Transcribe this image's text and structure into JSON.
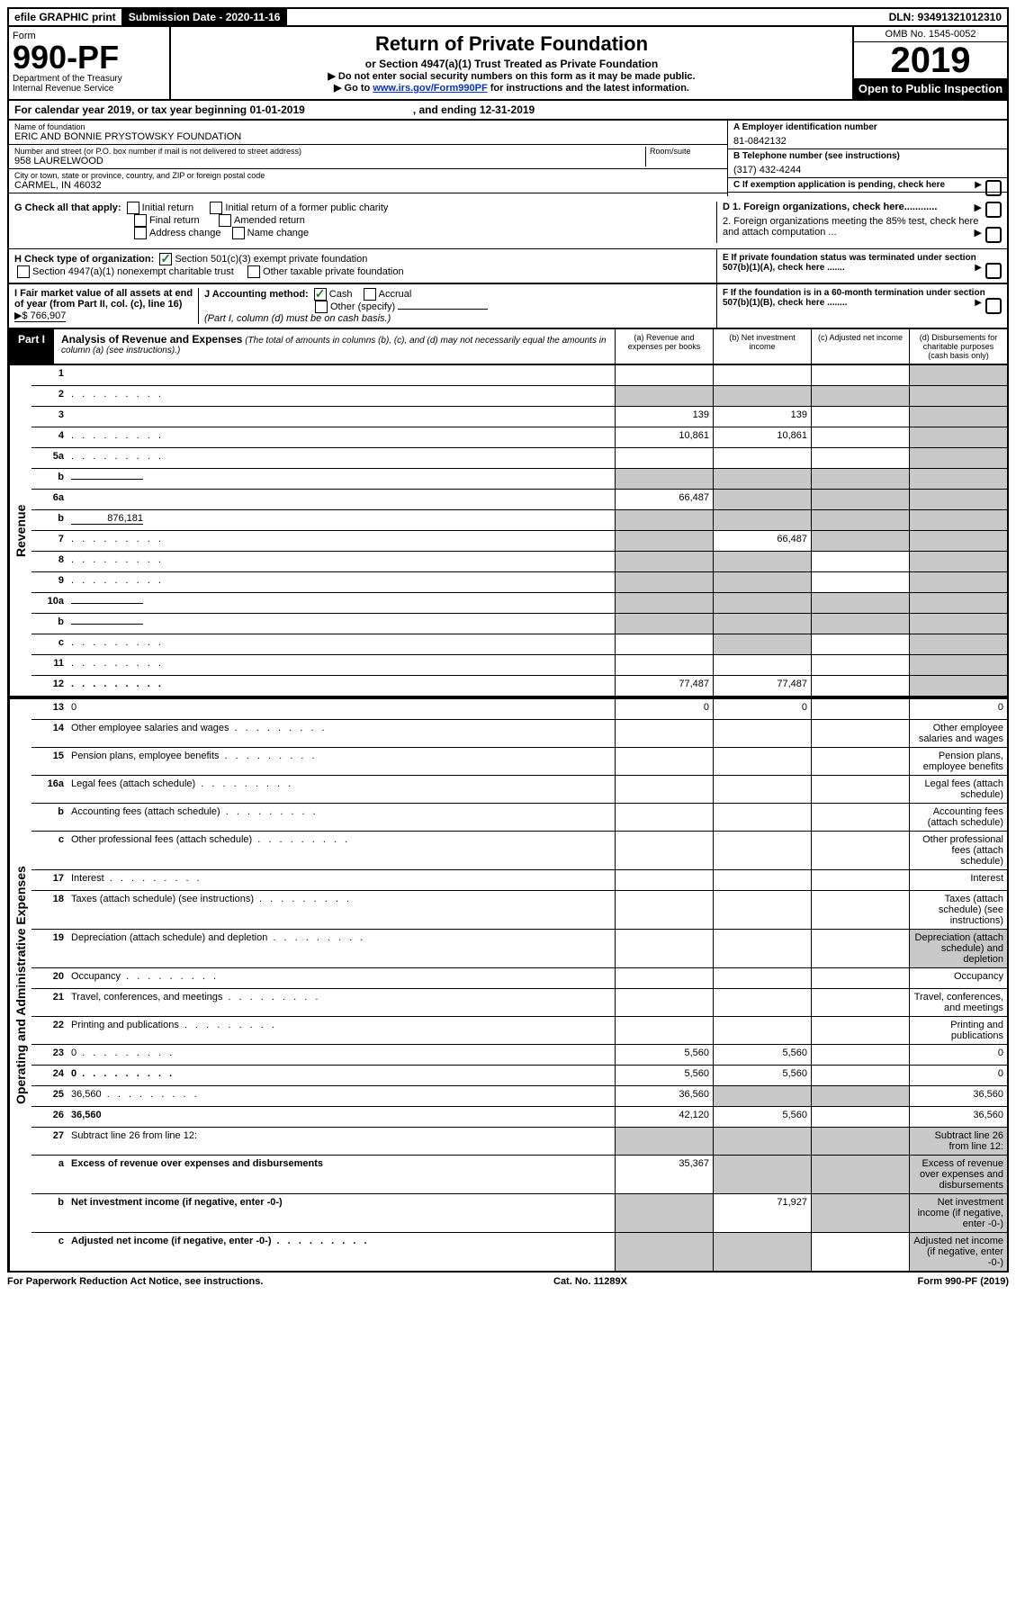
{
  "topbar": {
    "efile": "efile GRAPHIC print",
    "submission_label": "Submission Date - 2020-11-16",
    "dln": "DLN: 93491321012310"
  },
  "header": {
    "form_word": "Form",
    "form_number": "990-PF",
    "dept": "Department of the Treasury",
    "irs": "Internal Revenue Service",
    "title": "Return of Private Foundation",
    "subtitle": "or Section 4947(a)(1) Trust Treated as Private Foundation",
    "note1": "▶ Do not enter social security numbers on this form as it may be made public.",
    "note2_pre": "▶ Go to ",
    "note2_link": "www.irs.gov/Form990PF",
    "note2_post": " for instructions and the latest information.",
    "omb": "OMB No. 1545-0052",
    "year": "2019",
    "open": "Open to Public Inspection"
  },
  "calendar": {
    "text_a": "For calendar year 2019, or tax year beginning 01-01-2019",
    "text_b": ", and ending 12-31-2019"
  },
  "entity": {
    "name_label": "Name of foundation",
    "name": "ERIC AND BONNIE PRYSTOWSKY FOUNDATION",
    "addr_label": "Number and street (or P.O. box number if mail is not delivered to street address)",
    "addr": "958 LAURELWOOD",
    "room_label": "Room/suite",
    "city_label": "City or town, state or province, country, and ZIP or foreign postal code",
    "city": "CARMEL, IN  46032",
    "ein_label": "A Employer identification number",
    "ein": "81-0842132",
    "phone_label": "B Telephone number (see instructions)",
    "phone": "(317) 432-4244",
    "c_label": "C  If exemption application is pending, check here",
    "d1": "D 1. Foreign organizations, check here............",
    "d2": "2. Foreign organizations meeting the 85% test, check here and attach computation ...",
    "e_label": "E  If private foundation status was terminated under section 507(b)(1)(A), check here .......",
    "f_label": "F  If the foundation is in a 60-month termination under section 507(b)(1)(B), check here ........"
  },
  "g": {
    "label": "G Check all that apply:",
    "opts": {
      "initial": "Initial return",
      "initial_former": "Initial return of a former public charity",
      "final": "Final return",
      "amended": "Amended return",
      "address": "Address change",
      "name": "Name change"
    }
  },
  "h": {
    "label": "H Check type of organization:",
    "opt1": "Section 501(c)(3) exempt private foundation",
    "opt2": "Section 4947(a)(1) nonexempt charitable trust",
    "opt3": "Other taxable private foundation"
  },
  "i": {
    "label": "I Fair market value of all assets at end of year (from Part II, col. (c), line 16)",
    "value": "▶$  766,907"
  },
  "j": {
    "label": "J Accounting method:",
    "cash": "Cash",
    "accrual": "Accrual",
    "other": "Other (specify)",
    "note": "(Part I, column (d) must be on cash basis.)"
  },
  "part1": {
    "label": "Part I",
    "title": "Analysis of Revenue and Expenses",
    "desc": "(The total of amounts in columns (b), (c), and (d) may not necessarily equal the amounts in column (a) (see instructions).)",
    "cols": {
      "a": "(a) Revenue and expenses per books",
      "b": "(b) Net investment income",
      "c": "(c) Adjusted net income",
      "d": "(d) Disbursements for charitable purposes (cash basis only)"
    }
  },
  "sides": {
    "revenue": "Revenue",
    "expenses": "Operating and Administrative Expenses"
  },
  "rows": [
    {
      "n": "1",
      "d": "",
      "a": "",
      "b": "",
      "c": "",
      "dgrey": true
    },
    {
      "n": "2",
      "d": "",
      "a": "",
      "b": "",
      "c": "",
      "allgrey": true,
      "dots": true
    },
    {
      "n": "3",
      "d": "",
      "a": "139",
      "b": "139",
      "c": "",
      "dgrey": true
    },
    {
      "n": "4",
      "d": "",
      "a": "10,861",
      "b": "10,861",
      "c": "",
      "dgrey": true,
      "dots": true
    },
    {
      "n": "5a",
      "d": "",
      "a": "",
      "b": "",
      "c": "",
      "dgrey": true,
      "dots": true
    },
    {
      "n": "b",
      "d": "",
      "a": "",
      "b": "",
      "c": "",
      "allgrey": true,
      "underline": true
    },
    {
      "n": "6a",
      "d": "",
      "a": "66,487",
      "b": "",
      "c": "",
      "bcgrey": true,
      "dgrey": true
    },
    {
      "n": "b",
      "d": "",
      "a": "",
      "b": "",
      "c": "",
      "allgrey": true,
      "underline": true,
      "uval": "876,181"
    },
    {
      "n": "7",
      "d": "",
      "a": "",
      "b": "66,487",
      "c": "",
      "agrey": true,
      "cgrey": true,
      "dgrey": true,
      "dots": true
    },
    {
      "n": "8",
      "d": "",
      "a": "",
      "b": "",
      "c": "",
      "agrey": true,
      "bgrey": true,
      "dgrey": true,
      "dots": true
    },
    {
      "n": "9",
      "d": "",
      "a": "",
      "b": "",
      "c": "",
      "agrey": true,
      "bgrey": true,
      "dgrey": true,
      "dots": true
    },
    {
      "n": "10a",
      "d": "",
      "a": "",
      "b": "",
      "c": "",
      "allgrey": true,
      "underline": true
    },
    {
      "n": "b",
      "d": "",
      "a": "",
      "b": "",
      "c": "",
      "allgrey": true,
      "underline": true,
      "dots": true
    },
    {
      "n": "c",
      "d": "",
      "a": "",
      "b": "",
      "c": "",
      "bgrey": true,
      "dgrey": true,
      "dots": true
    },
    {
      "n": "11",
      "d": "",
      "a": "",
      "b": "",
      "c": "",
      "dgrey": true,
      "dots": true
    },
    {
      "n": "12",
      "d": "",
      "a": "77,487",
      "b": "77,487",
      "c": "",
      "dgrey": true,
      "bold": true,
      "dots": true
    }
  ],
  "exp_rows": [
    {
      "n": "13",
      "d": "0",
      "a": "0",
      "b": "0",
      "c": ""
    },
    {
      "n": "14",
      "d": "Other employee salaries and wages",
      "dots": true
    },
    {
      "n": "15",
      "d": "Pension plans, employee benefits",
      "dots": true
    },
    {
      "n": "16a",
      "d": "Legal fees (attach schedule)",
      "dots": true
    },
    {
      "n": "b",
      "d": "Accounting fees (attach schedule)",
      "dots": true
    },
    {
      "n": "c",
      "d": "Other professional fees (attach schedule)",
      "dots": true
    },
    {
      "n": "17",
      "d": "Interest",
      "dots": true
    },
    {
      "n": "18",
      "d": "Taxes (attach schedule) (see instructions)",
      "dots": true
    },
    {
      "n": "19",
      "d": "Depreciation (attach schedule) and depletion",
      "dgrey": true,
      "dots": true
    },
    {
      "n": "20",
      "d": "Occupancy",
      "dots": true
    },
    {
      "n": "21",
      "d": "Travel, conferences, and meetings",
      "dots": true
    },
    {
      "n": "22",
      "d": "Printing and publications",
      "dots": true
    },
    {
      "n": "23",
      "d": "0",
      "a": "5,560",
      "b": "5,560",
      "c": "",
      "dots": true
    },
    {
      "n": "24",
      "d": "0",
      "a": "5,560",
      "b": "5,560",
      "c": "",
      "bold": true,
      "dots": true
    },
    {
      "n": "25",
      "d": "36,560",
      "a": "36,560",
      "b": "",
      "c": "",
      "bgrey": true,
      "cgrey": true,
      "dots": true
    },
    {
      "n": "26",
      "d": "36,560",
      "a": "42,120",
      "b": "5,560",
      "c": "",
      "bold": true
    },
    {
      "n": "27",
      "d": "Subtract line 26 from line 12:",
      "allgrey": true
    },
    {
      "n": "a",
      "d": "Excess of revenue over expenses and disbursements",
      "a": "35,367",
      "bgrey": true,
      "cgrey": true,
      "dgrey": true,
      "bold": true
    },
    {
      "n": "b",
      "d": "Net investment income (if negative, enter -0-)",
      "b": "71,927",
      "agrey": true,
      "cgrey": true,
      "dgrey": true,
      "bold": true
    },
    {
      "n": "c",
      "d": "Adjusted net income (if negative, enter -0-)",
      "agrey": true,
      "bgrey": true,
      "dgrey": true,
      "bold": true,
      "dots": true
    }
  ],
  "footer": {
    "left": "For Paperwork Reduction Act Notice, see instructions.",
    "center": "Cat. No. 11289X",
    "right": "Form 990-PF (2019)"
  }
}
